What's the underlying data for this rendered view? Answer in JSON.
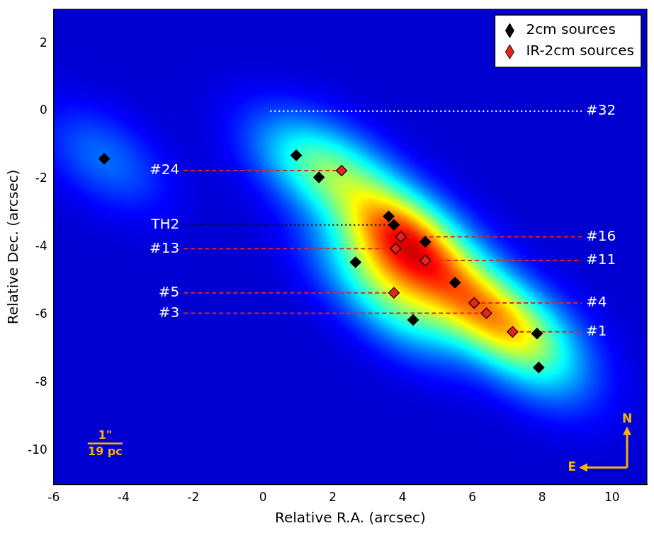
{
  "chart_data": {
    "type": "scatter",
    "xlabel": "Relative R.A. (arcsec)",
    "ylabel": "Relative Dec. (arcsec)",
    "xlim": [
      -6,
      11
    ],
    "ylim": [
      -11,
      3
    ],
    "xticks": [
      -6,
      -4,
      -2,
      0,
      2,
      4,
      6,
      8,
      10
    ],
    "yticks": [
      -10,
      -8,
      -6,
      -4,
      -2,
      0,
      2
    ],
    "grid": false,
    "legend": "upper right",
    "series": [
      {
        "name": "2cm sources",
        "color": "#000000",
        "marker": "diamond",
        "x": [
          -4.55,
          0.95,
          1.6,
          3.6,
          3.75,
          4.65,
          2.65,
          5.5,
          4.3,
          7.85,
          7.9
        ],
        "y": [
          -1.4,
          -1.3,
          -1.95,
          -3.1,
          -3.35,
          -3.85,
          -4.45,
          -5.05,
          -6.15,
          -6.55,
          -7.55
        ]
      },
      {
        "name": "IR-2cm sources",
        "color": "#e8231c",
        "marker": "diamond",
        "x": [
          2.25,
          3.95,
          3.8,
          4.65,
          3.75,
          6.05,
          6.4,
          7.15
        ],
        "y": [
          -1.75,
          -3.7,
          -4.05,
          -4.4,
          -5.35,
          -5.65,
          -5.95,
          -6.5
        ]
      }
    ],
    "annotations": [
      {
        "text": "#32",
        "x": 0.0,
        "y": 0.0,
        "side": "right",
        "color": "#ffffff",
        "line_style": "dotted"
      },
      {
        "text": "#24",
        "x": 2.25,
        "y": -1.75,
        "side": "left",
        "color": "#e8231c",
        "line_style": "dashed"
      },
      {
        "text": "TH2",
        "x": 3.65,
        "y": -3.35,
        "side": "left",
        "color": "#000000",
        "line_style": "dotted"
      },
      {
        "text": "#13",
        "x": 3.8,
        "y": -4.05,
        "side": "left",
        "color": "#e8231c",
        "line_style": "dashed"
      },
      {
        "text": "#5",
        "x": 3.75,
        "y": -5.35,
        "side": "left",
        "color": "#e8231c",
        "line_style": "dashed"
      },
      {
        "text": "#3",
        "x": 6.4,
        "y": -5.95,
        "side": "left",
        "color": "#e8231c",
        "line_style": "dashed"
      },
      {
        "text": "#16",
        "x": 3.95,
        "y": -3.7,
        "side": "right",
        "color": "#e8231c",
        "line_style": "dashed"
      },
      {
        "text": "#11",
        "x": 4.65,
        "y": -4.4,
        "side": "right",
        "color": "#e8231c",
        "line_style": "dashed"
      },
      {
        "text": "#4",
        "x": 6.05,
        "y": -5.65,
        "side": "right",
        "color": "#e8231c",
        "line_style": "dashed"
      },
      {
        "text": "#1",
        "x": 7.15,
        "y": -6.5,
        "side": "right",
        "color": "#e8231c",
        "line_style": "dashed"
      }
    ],
    "scale_bar": {
      "length": 1,
      "label": "1\"",
      "sublabel": "19 pc",
      "color": "#f5b400"
    },
    "compass": {
      "north": "N",
      "east": "E",
      "color": "#f5b400"
    }
  }
}
